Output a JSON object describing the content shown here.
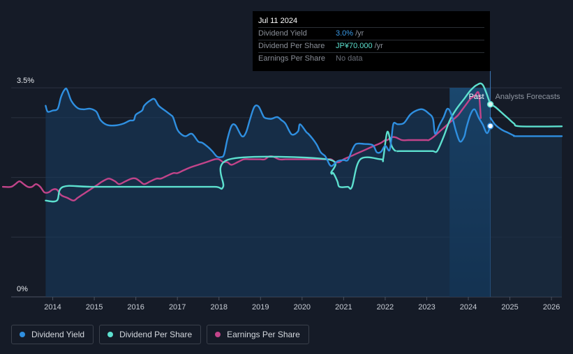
{
  "chart_data": {
    "type": "line",
    "title": "",
    "xlabel": "",
    "ylabel": "",
    "y_tick_labels": [
      "3.5%",
      "0%"
    ],
    "ylim": [
      0,
      3.5
    ],
    "xlim": [
      2013.0,
      2026.25
    ],
    "x_ticks": [
      2014,
      2015,
      2016,
      2017,
      2018,
      2019,
      2020,
      2021,
      2022,
      2023,
      2024,
      2025,
      2026
    ],
    "x_tick_labels": [
      "2014",
      "2015",
      "2016",
      "2017",
      "2018",
      "2019",
      "2020",
      "2021",
      "2022",
      "2023",
      "2024",
      "2025",
      "2026"
    ],
    "past_label": "Past",
    "forecast_label": "Analysts Forecasts",
    "forecast_start": 2024.53,
    "highlight_band": [
      2023.55,
      2024.53
    ],
    "series": [
      {
        "name": "Dividend Yield",
        "color": "#2f8fe0",
        "unit": "%",
        "x": [
          2013.83,
          2013.88,
          2014.0,
          2014.12,
          2014.2,
          2014.3,
          2014.35,
          2014.45,
          2014.6,
          2014.75,
          2014.9,
          2015.05,
          2015.15,
          2015.3,
          2015.5,
          2015.7,
          2015.85,
          2015.95,
          2016.0,
          2016.15,
          2016.2,
          2016.35,
          2016.45,
          2016.55,
          2016.7,
          2016.85,
          2016.9,
          2017.0,
          2017.1,
          2017.2,
          2017.35,
          2017.5,
          2017.6,
          2017.75,
          2017.85,
          2017.95,
          2018.05,
          2018.12,
          2018.2,
          2018.3,
          2018.4,
          2018.55,
          2018.65,
          2018.75,
          2018.85,
          2018.95,
          2019.05,
          2019.1,
          2019.25,
          2019.4,
          2019.5,
          2019.6,
          2019.75,
          2019.9,
          2019.95,
          2020.1,
          2020.15,
          2020.25,
          2020.35,
          2020.45,
          2020.55,
          2020.6,
          2020.7,
          2020.85,
          2021.0,
          2021.1,
          2021.2,
          2021.3,
          2021.5,
          2021.7,
          2021.8,
          2021.9,
          2022.0,
          2022.1,
          2022.15,
          2022.2,
          2022.3,
          2022.45,
          2022.6,
          2022.75,
          2022.9,
          2023.05,
          2023.15,
          2023.2,
          2023.3,
          2023.4,
          2023.5,
          2023.6,
          2023.7,
          2023.8,
          2023.9,
          2023.95,
          2024.05,
          2024.15,
          2024.25,
          2024.35,
          2024.45,
          2024.53
        ],
        "values": [
          3.2,
          3.1,
          3.12,
          3.15,
          3.35,
          3.48,
          3.46,
          3.28,
          3.16,
          3.14,
          3.15,
          3.1,
          2.96,
          2.88,
          2.87,
          2.9,
          2.95,
          2.96,
          3.05,
          3.12,
          3.2,
          3.29,
          3.31,
          3.2,
          3.12,
          3.04,
          3.0,
          2.8,
          2.72,
          2.69,
          2.73,
          2.6,
          2.58,
          2.5,
          2.43,
          2.35,
          2.34,
          2.38,
          2.63,
          2.86,
          2.87,
          2.69,
          2.75,
          2.98,
          3.18,
          3.19,
          3.05,
          3.0,
          2.98,
          3.01,
          2.96,
          2.9,
          2.72,
          2.77,
          2.89,
          2.76,
          2.73,
          2.65,
          2.55,
          2.42,
          2.36,
          2.3,
          2.19,
          2.27,
          2.29,
          2.29,
          2.45,
          2.56,
          2.56,
          2.54,
          2.42,
          2.43,
          2.53,
          2.45,
          2.65,
          2.9,
          2.89,
          2.91,
          3.05,
          3.12,
          3.14,
          3.07,
          2.98,
          2.73,
          2.87,
          3.0,
          3.15,
          3.04,
          2.78,
          2.6,
          2.68,
          2.82,
          3.05,
          3.14,
          3.0,
          2.88,
          2.74,
          2.86
        ]
      },
      {
        "name": "Dividend Yield Forecast",
        "color": "#2f8fe0",
        "unit": "%",
        "x": [
          2024.53,
          2024.65,
          2024.8,
          2024.95,
          2025.1,
          2025.2,
          2026.25
        ],
        "values": [
          3.0,
          2.88,
          2.8,
          2.75,
          2.7,
          2.69,
          2.69
        ]
      },
      {
        "name": "Dividend Per Share",
        "color": "#5de0cf",
        "unit": "JP¥",
        "x": [
          2013.83,
          2014.1,
          2014.25,
          2015.0,
          2017.0,
          2017.9,
          2018.1,
          2018.25,
          2020.6,
          2020.7,
          2020.75,
          2020.85,
          2020.9,
          2021.1,
          2021.2,
          2021.4,
          2021.9,
          2021.95,
          2022.05,
          2022.15,
          2022.25,
          2022.35,
          2023.05,
          2023.15,
          2023.25,
          2023.4,
          2023.55,
          2023.7,
          2023.9,
          2024.05,
          2024.2,
          2024.35,
          2024.53
        ],
        "values": [
          35.0,
          35.0,
          40.0,
          40.0,
          40.0,
          40.0,
          40.0,
          50.0,
          50.0,
          45.0,
          45.0,
          42.0,
          40.0,
          40.0,
          40.0,
          50.0,
          50.0,
          50.0,
          60.0,
          55.0,
          53.0,
          53.0,
          53.0,
          53.0,
          53.0,
          58.0,
          64.0,
          68.0,
          72.0,
          75.0,
          77.0,
          77.0,
          70.0
        ]
      },
      {
        "name": "Dividend Per Share Forecast",
        "color": "#5de0cf",
        "unit": "JP¥",
        "x": [
          2024.53,
          2024.65,
          2024.8,
          2024.95,
          2025.1,
          2025.25,
          2026.25
        ],
        "values": [
          70.0,
          69.0,
          67.0,
          65.0,
          63.0,
          62.0,
          62.0
        ]
      },
      {
        "name": "Earnings Per Share",
        "color": "#c2448a",
        "unit": "JP¥",
        "x": [
          2012.8,
          2013.0,
          2013.1,
          2013.2,
          2013.3,
          2013.4,
          2013.5,
          2013.6,
          2013.7,
          2013.8,
          2013.9,
          2014.0,
          2014.1,
          2014.2,
          2014.35,
          2014.5,
          2014.6,
          2014.7,
          2014.8,
          2014.9,
          2015.0,
          2015.1,
          2015.2,
          2015.35,
          2015.5,
          2015.6,
          2015.75,
          2015.9,
          2016.0,
          2016.1,
          2016.2,
          2016.35,
          2016.5,
          2016.6,
          2016.75,
          2016.9,
          2017.0,
          2017.15,
          2017.3,
          2017.5,
          2017.7,
          2017.9,
          2018.0,
          2018.1,
          2018.2,
          2018.3,
          2018.45,
          2018.6,
          2018.75,
          2018.9,
          2019.0,
          2019.1,
          2019.2,
          2019.3,
          2019.45,
          2019.6,
          2019.75,
          2019.9,
          2020.0,
          2020.1,
          2020.2,
          2020.35,
          2020.5,
          2020.6,
          2020.7,
          2020.8,
          2020.9,
          2021.0,
          2021.15,
          2021.3,
          2021.45,
          2021.6,
          2021.75,
          2021.9,
          2022.0,
          2022.05,
          2022.15,
          2022.25,
          2022.4,
          2022.55,
          2022.7,
          2022.85,
          2023.0,
          2023.05,
          2023.15,
          2023.3,
          2023.45,
          2023.6,
          2023.75,
          2023.85,
          2023.95,
          2024.05,
          2024.15,
          2024.25,
          2024.3
        ],
        "values": [
          40.0,
          40.0,
          41.0,
          42.0,
          41.0,
          40.0,
          40.0,
          41.0,
          40.0,
          38.0,
          38.0,
          39.0,
          39.0,
          37.0,
          36.0,
          35.0,
          36.0,
          37.0,
          38.0,
          39.0,
          40.0,
          41.0,
          42.0,
          43.0,
          42.0,
          41.0,
          42.0,
          43.0,
          43.0,
          42.0,
          41.0,
          42.0,
          43.0,
          43.0,
          44.0,
          45.0,
          45.0,
          46.0,
          47.0,
          48.0,
          49.0,
          50.0,
          50.0,
          49.0,
          49.0,
          48.0,
          49.0,
          50.0,
          50.0,
          50.0,
          50.0,
          50.0,
          51.0,
          51.0,
          50.0,
          50.0,
          50.0,
          50.0,
          50.0,
          50.0,
          50.0,
          50.0,
          50.0,
          50.0,
          50.0,
          49.0,
          49.0,
          50.0,
          51.0,
          52.0,
          53.0,
          54.0,
          55.0,
          56.0,
          57.0,
          57.0,
          58.0,
          58.0,
          57.0,
          57.0,
          57.0,
          57.0,
          57.0,
          57.0,
          58.0,
          60.0,
          62.0,
          64.0,
          66.0,
          68.0,
          70.0,
          72.0,
          73.0,
          74.0,
          65.0
        ]
      }
    ]
  },
  "tooltip": {
    "date": "Jul 11 2024",
    "rows": [
      {
        "label": "Dividend Yield",
        "value": "3.0%",
        "unit": "/yr"
      },
      {
        "label": "Dividend Per Share",
        "value": "JP¥70.000",
        "unit": "/yr"
      },
      {
        "label": "Earnings Per Share",
        "value": "No data",
        "unit": ""
      }
    ]
  },
  "legend": [
    {
      "label": "Dividend Yield",
      "color": "#2f8fe0"
    },
    {
      "label": "Dividend Per Share",
      "color": "#5de0cf"
    },
    {
      "label": "Earnings Per Share",
      "color": "#c2448a"
    }
  ]
}
